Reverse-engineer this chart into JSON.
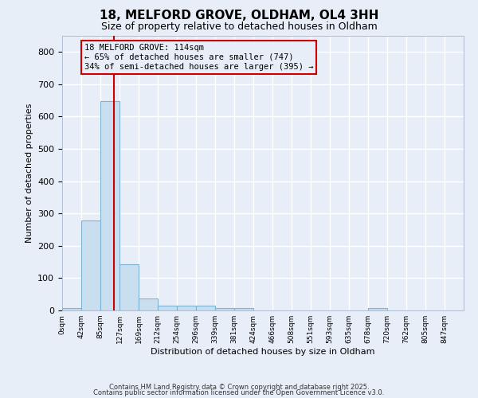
{
  "title": "18, MELFORD GROVE, OLDHAM, OL4 3HH",
  "subtitle": "Size of property relative to detached houses in Oldham",
  "xlabel": "Distribution of detached houses by size in Oldham",
  "ylabel": "Number of detached properties",
  "bin_labels": [
    "0sqm",
    "42sqm",
    "85sqm",
    "127sqm",
    "169sqm",
    "212sqm",
    "254sqm",
    "296sqm",
    "339sqm",
    "381sqm",
    "424sqm",
    "466sqm",
    "508sqm",
    "551sqm",
    "593sqm",
    "635sqm",
    "678sqm",
    "720sqm",
    "762sqm",
    "805sqm",
    "847sqm"
  ],
  "bar_heights": [
    8,
    278,
    647,
    142,
    36,
    16,
    14,
    14,
    8,
    8,
    0,
    0,
    0,
    0,
    0,
    0,
    8,
    0,
    0,
    0,
    0
  ],
  "bar_color": "#c9dff0",
  "bar_edgecolor": "#7fb3d3",
  "vline_color": "#cc0000",
  "annotation_text": "18 MELFORD GROVE: 114sqm\n← 65% of detached houses are smaller (747)\n34% of semi-detached houses are larger (395) →",
  "annotation_box_color": "#cc0000",
  "annotation_fontsize": 7.5,
  "ylim": [
    0,
    850
  ],
  "yticks": [
    0,
    100,
    200,
    300,
    400,
    500,
    600,
    700,
    800
  ],
  "bg_color": "#e8eef8",
  "grid_color": "#ffffff",
  "footer1": "Contains HM Land Registry data © Crown copyright and database right 2025.",
  "footer2": "Contains public sector information licensed under the Open Government Licence v3.0."
}
